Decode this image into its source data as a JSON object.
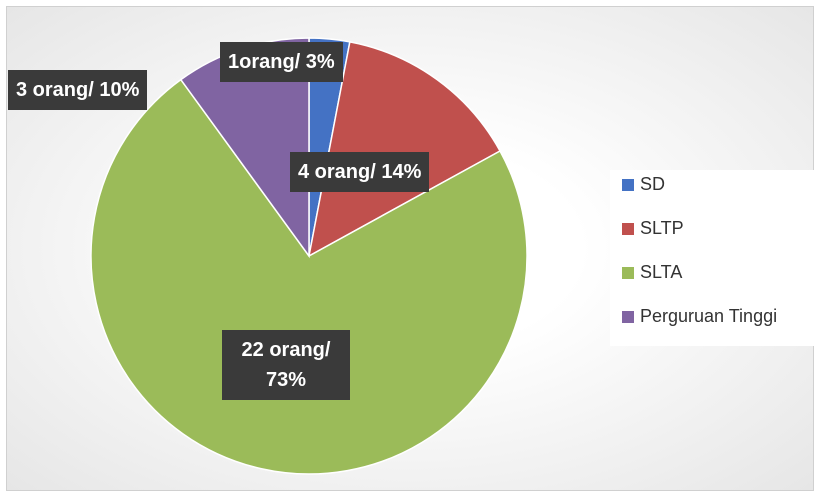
{
  "chart_data": {
    "type": "pie",
    "categories": [
      "SD",
      "SLTP",
      "SLTA",
      "Perguruan Tinggi"
    ],
    "values": [
      3,
      14,
      73,
      10
    ],
    "value_labels": [
      "1orang/ 3%",
      "4 orang/ 14%",
      "22 orang/ 73%",
      "3 orang/ 10%"
    ],
    "colors": [
      "#4472c4",
      "#c0504d",
      "#9bbb59",
      "#8064a2"
    ],
    "legend": "right"
  }
}
